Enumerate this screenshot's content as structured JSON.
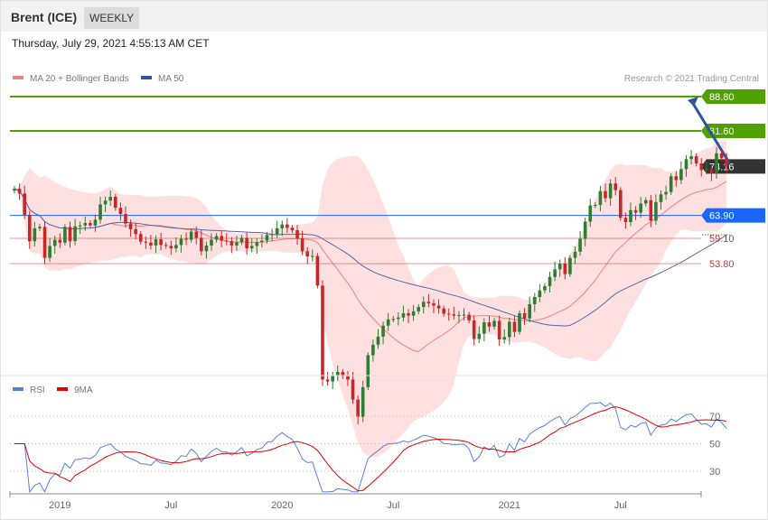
{
  "header": {
    "title": "Brent (ICE)",
    "timeframe_label": "WEEKLY",
    "timestamp": "Thursday, July 29, 2021 4:55:13 AM CET"
  },
  "colors": {
    "ma20": "#f08080",
    "ma50": "#2f5597",
    "bands_fill": "#ffd6d6",
    "target": "#4fa000",
    "pivot": "#1a66ff",
    "support": "#e06666",
    "last": "#333333",
    "up_candle": "#2e7d32",
    "down_candle": "#c62828",
    "rsi": "#5b7fd6",
    "rsi_ma": "#e00000"
  },
  "chart_data": [
    {
      "type": "candlestick",
      "title": "Brent (ICE)",
      "timeframe": "Weekly",
      "legend": [
        {
          "label": "MA 20 + Bollinger Bands",
          "color": "#f08080"
        },
        {
          "label": "MA 50",
          "color": "#2f5597"
        }
      ],
      "credit": "Research © 2021 Trading Central",
      "levels": [
        {
          "label": "88.80",
          "value": 88.8,
          "kind": "target"
        },
        {
          "label": "81.60",
          "value": 81.6,
          "kind": "target"
        },
        {
          "label": "74.16",
          "value": 74.16,
          "kind": "last"
        },
        {
          "label": "63.90",
          "value": 63.9,
          "kind": "pivot"
        },
        {
          "label": "59.10",
          "value": 59.1,
          "kind": "support"
        },
        {
          "label": "53.80",
          "value": 53.8,
          "kind": "support"
        }
      ],
      "x_ticks": [
        "2019",
        "Jul",
        "2020",
        "Jul",
        "2021",
        "Jul"
      ],
      "close": [
        69.5,
        68.5,
        64,
        58.5,
        61.2,
        61.5,
        55,
        57.5,
        58.8,
        58.2,
        61.5,
        58.5,
        61.6,
        61.8,
        62.3,
        61.8,
        63.0,
        66.2,
        67.0,
        67.8,
        65.5,
        64.2,
        62.2,
        61.0,
        60.0,
        58.4,
        58.2,
        57.6,
        58.9,
        57.7,
        57.5,
        57.0,
        57.7,
        59.0,
        58.8,
        60.5,
        59.2,
        56.4,
        57.6,
        58.8,
        59.6,
        58.6,
        58.5,
        57.6,
        58.3,
        59.2,
        57.0,
        57.5,
        58.3,
        58.6,
        59.8,
        60.0,
        61.2,
        62.0,
        61.3,
        60.8,
        59.1,
        56.4,
        55.3,
        55.4,
        49.2,
        29.5,
        29.1,
        30.3,
        31.1,
        30.2,
        29.5,
        25.3,
        21.7,
        27.9,
        34.6,
        36.8,
        38.5,
        40.8,
        42.1,
        42.2,
        42.5,
        43.4,
        42.9,
        43.8,
        44.7,
        45.8,
        45.5,
        45.0,
        44.4,
        43.3,
        43.2,
        42.9,
        43.0,
        43.1,
        41.9,
        38.0,
        39.1,
        41.5,
        40.6,
        41.8,
        37.9,
        38.4,
        41.6,
        39.5,
        43.4,
        42.3,
        45.3,
        46.8,
        48.2,
        49.1,
        51.0,
        52.6,
        53.8,
        51.6,
        55.0,
        56.3,
        59.0,
        62.6,
        66.0,
        66.1,
        69.0,
        67.5,
        70.6,
        69.2,
        63.4,
        62.5,
        65.0,
        64.5,
        66.4,
        67.1,
        62.8,
        66.7,
        68.3,
        68.8,
        72.1,
        71.3,
        73.6,
        75.7,
        76.3,
        74.8,
        73.4,
        73.6,
        72.7,
        76.9,
        75.9,
        74.16
      ],
      "ylim": [
        21,
        89
      ],
      "rsi": {
        "legend": [
          {
            "label": "RSI",
            "color": "#5b7fd6"
          },
          {
            "label": "9MA",
            "color": "#e00000"
          }
        ],
        "y_ticks": [
          70,
          50,
          30
        ],
        "ylim": [
          15,
          80
        ]
      }
    }
  ]
}
